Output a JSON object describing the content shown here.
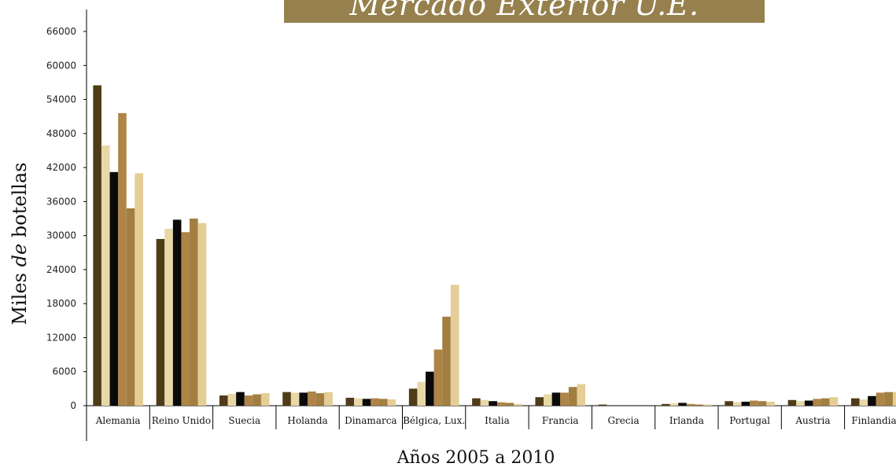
{
  "chart_data": {
    "type": "bar",
    "title": "Mercado Exterior U.E.",
    "ylabel_prefix": "Miles ",
    "ylabel_italic": "de",
    "ylabel_suffix": " botellas",
    "xlabel": "Años 2005 a 2010",
    "ylim": [
      0,
      66000
    ],
    "yticks": [
      0,
      6000,
      12000,
      18000,
      24000,
      30000,
      36000,
      42000,
      48000,
      54000,
      60000,
      66000
    ],
    "grid": false,
    "legend": "none",
    "categories": [
      "Alemania",
      "Reino Unido",
      "Suecia",
      "Holanda",
      "Dinamarca",
      "Bélgica, Lux.",
      "Italia",
      "Francia",
      "Grecia",
      "Irlanda",
      "Portugal",
      "Austria",
      "Finlandia"
    ],
    "series_colors": [
      "#4f3b17",
      "#e8d8a7",
      "#0a0a0a",
      "#ae8447",
      "#a27e40",
      "#e4cd96"
    ],
    "series": [
      {
        "values": [
          56500,
          29400,
          1800,
          2400,
          1400,
          3000,
          1300,
          1500,
          200,
          300,
          800,
          1000,
          1300
        ]
      },
      {
        "values": [
          45900,
          31200,
          2100,
          2300,
          1300,
          4200,
          1000,
          2000,
          0,
          400,
          600,
          800,
          1100
        ]
      },
      {
        "values": [
          41200,
          32800,
          2400,
          2300,
          1200,
          6000,
          800,
          2300,
          0,
          500,
          700,
          900,
          1700
        ]
      },
      {
        "values": [
          51600,
          30600,
          1800,
          2500,
          1300,
          9900,
          600,
          2300,
          0,
          300,
          900,
          1200,
          2300
        ]
      },
      {
        "values": [
          34800,
          33000,
          2000,
          2200,
          1200,
          15700,
          500,
          3300,
          0,
          200,
          800,
          1300,
          2400
        ]
      },
      {
        "values": [
          41000,
          32200,
          2200,
          2400,
          1100,
          21300,
          300,
          3800,
          0,
          200,
          700,
          1500,
          2400
        ]
      }
    ]
  }
}
